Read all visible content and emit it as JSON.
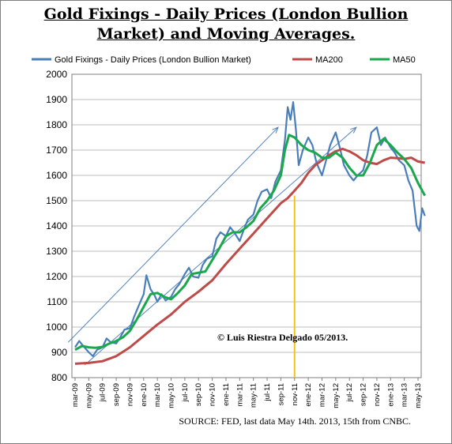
{
  "title_line1": "Gold Fixings - Daily Prices (London Bullion",
  "title_line2": "Market) and Moving Averages.",
  "source": "SOURCE: FED, last data May 14th. 2013, 15th from CNBC.",
  "annotation": "© Luis Riestra Delgado 05/2013.",
  "colors": {
    "price": "#4a7ebb",
    "ma200": "#be4b48",
    "ma50": "#1aa84c",
    "trend": "#4f81bd",
    "marker": "#f2c314",
    "grid": "#bfbfbf"
  },
  "chart_data": {
    "type": "line",
    "title": "Gold Fixings - Daily Prices (London Bullion Market) and Moving Averages.",
    "xlabel": "",
    "ylabel": "",
    "ylim": [
      800,
      2000
    ],
    "yticks": [
      800,
      900,
      1000,
      1100,
      1200,
      1300,
      1400,
      1500,
      1600,
      1700,
      1800,
      1900,
      2000
    ],
    "grid": true,
    "legend_position": "top",
    "x_labels": [
      "mar-09",
      "may-09",
      "jul-09",
      "sep-09",
      "nov-09",
      "ene-10",
      "mar-10",
      "may-10",
      "jul-10",
      "sep-10",
      "nov-10",
      "ene-11",
      "mar-11",
      "may-11",
      "jul-11",
      "sep-11",
      "nov-11",
      "ene-12",
      "mar-12",
      "may-12",
      "jul-12",
      "sep-12",
      "nov-12",
      "ene-13",
      "mar-13",
      "may-13"
    ],
    "series": [
      {
        "name": "Gold Fixings - Daily Prices (London Bullion Market)",
        "values": [
          [
            0,
            920
          ],
          [
            0.3,
            945
          ],
          [
            0.6,
            925
          ],
          [
            1,
            900
          ],
          [
            1.3,
            885
          ],
          [
            1.6,
            910
          ],
          [
            2,
            920
          ],
          [
            2.3,
            955
          ],
          [
            2.6,
            940
          ],
          [
            3,
            935
          ],
          [
            3.3,
            960
          ],
          [
            3.6,
            990
          ],
          [
            4,
            995
          ],
          [
            4.3,
            1040
          ],
          [
            4.6,
            1080
          ],
          [
            5,
            1130
          ],
          [
            5.2,
            1205
          ],
          [
            5.5,
            1150
          ],
          [
            5.8,
            1125
          ],
          [
            6,
            1100
          ],
          [
            6.3,
            1130
          ],
          [
            6.6,
            1105
          ],
          [
            7,
            1120
          ],
          [
            7.3,
            1150
          ],
          [
            7.6,
            1170
          ],
          [
            8,
            1210
          ],
          [
            8.3,
            1235
          ],
          [
            8.6,
            1200
          ],
          [
            9,
            1195
          ],
          [
            9.3,
            1245
          ],
          [
            9.6,
            1270
          ],
          [
            10,
            1280
          ],
          [
            10.3,
            1350
          ],
          [
            10.6,
            1375
          ],
          [
            11,
            1360
          ],
          [
            11.3,
            1395
          ],
          [
            11.6,
            1375
          ],
          [
            12,
            1340
          ],
          [
            12.3,
            1385
          ],
          [
            12.6,
            1425
          ],
          [
            13,
            1445
          ],
          [
            13.3,
            1500
          ],
          [
            13.6,
            1535
          ],
          [
            14,
            1545
          ],
          [
            14.3,
            1510
          ],
          [
            14.6,
            1575
          ],
          [
            15,
            1620
          ],
          [
            15.3,
            1740
          ],
          [
            15.5,
            1870
          ],
          [
            15.7,
            1820
          ],
          [
            15.9,
            1890
          ],
          [
            16.1,
            1780
          ],
          [
            16.3,
            1640
          ],
          [
            16.6,
            1700
          ],
          [
            17,
            1750
          ],
          [
            17.3,
            1720
          ],
          [
            17.6,
            1650
          ],
          [
            18,
            1600
          ],
          [
            18.3,
            1660
          ],
          [
            18.6,
            1720
          ],
          [
            19,
            1770
          ],
          [
            19.3,
            1710
          ],
          [
            19.6,
            1640
          ],
          [
            20,
            1600
          ],
          [
            20.3,
            1580
          ],
          [
            20.6,
            1600
          ],
          [
            21,
            1620
          ],
          [
            21.3,
            1680
          ],
          [
            21.6,
            1770
          ],
          [
            22,
            1790
          ],
          [
            22.3,
            1720
          ],
          [
            22.6,
            1750
          ],
          [
            23,
            1710
          ],
          [
            23.3,
            1690
          ],
          [
            23.6,
            1660
          ],
          [
            24,
            1640
          ],
          [
            24.3,
            1580
          ],
          [
            24.6,
            1540
          ],
          [
            24.9,
            1400
          ],
          [
            25.1,
            1380
          ],
          [
            25.3,
            1470
          ],
          [
            25.5,
            1440
          ]
        ]
      },
      {
        "name": "MA200",
        "values": [
          [
            0,
            855
          ],
          [
            1,
            858
          ],
          [
            2,
            865
          ],
          [
            3,
            885
          ],
          [
            4,
            920
          ],
          [
            5,
            965
          ],
          [
            6,
            1010
          ],
          [
            7,
            1050
          ],
          [
            8,
            1100
          ],
          [
            9,
            1140
          ],
          [
            10,
            1185
          ],
          [
            11,
            1250
          ],
          [
            12,
            1310
          ],
          [
            13,
            1370
          ],
          [
            14,
            1430
          ],
          [
            15,
            1490
          ],
          [
            15.5,
            1510
          ],
          [
            16,
            1540
          ],
          [
            16.5,
            1570
          ],
          [
            17,
            1610
          ],
          [
            17.5,
            1640
          ],
          [
            18,
            1660
          ],
          [
            18.5,
            1680
          ],
          [
            19,
            1695
          ],
          [
            19.5,
            1705
          ],
          [
            20,
            1695
          ],
          [
            20.5,
            1680
          ],
          [
            21,
            1660
          ],
          [
            21.5,
            1650
          ],
          [
            22,
            1645
          ],
          [
            22.5,
            1660
          ],
          [
            23,
            1670
          ],
          [
            23.5,
            1668
          ],
          [
            24,
            1665
          ],
          [
            24.5,
            1670
          ],
          [
            25,
            1655
          ],
          [
            25.5,
            1650
          ]
        ]
      },
      {
        "name": "MA50",
        "values": [
          [
            0,
            910
          ],
          [
            0.5,
            925
          ],
          [
            1,
            920
          ],
          [
            1.5,
            918
          ],
          [
            2,
            922
          ],
          [
            2.5,
            935
          ],
          [
            3,
            945
          ],
          [
            3.5,
            960
          ],
          [
            4,
            985
          ],
          [
            4.5,
            1030
          ],
          [
            5,
            1080
          ],
          [
            5.5,
            1130
          ],
          [
            6,
            1135
          ],
          [
            6.5,
            1120
          ],
          [
            7,
            1110
          ],
          [
            7.5,
            1135
          ],
          [
            8,
            1165
          ],
          [
            8.5,
            1210
          ],
          [
            9,
            1215
          ],
          [
            9.5,
            1220
          ],
          [
            10,
            1265
          ],
          [
            10.5,
            1310
          ],
          [
            11,
            1360
          ],
          [
            11.5,
            1375
          ],
          [
            12,
            1375
          ],
          [
            12.5,
            1395
          ],
          [
            13,
            1420
          ],
          [
            13.5,
            1470
          ],
          [
            14,
            1500
          ],
          [
            14.5,
            1540
          ],
          [
            15,
            1600
          ],
          [
            15.3,
            1700
          ],
          [
            15.6,
            1760
          ],
          [
            16,
            1750
          ],
          [
            16.5,
            1720
          ],
          [
            17,
            1700
          ],
          [
            17.5,
            1690
          ],
          [
            18,
            1670
          ],
          [
            18.5,
            1670
          ],
          [
            19,
            1690
          ],
          [
            19.5,
            1670
          ],
          [
            20,
            1630
          ],
          [
            20.5,
            1600
          ],
          [
            21,
            1600
          ],
          [
            21.5,
            1650
          ],
          [
            22,
            1720
          ],
          [
            22.5,
            1745
          ],
          [
            23,
            1720
          ],
          [
            23.5,
            1690
          ],
          [
            24,
            1665
          ],
          [
            24.5,
            1630
          ],
          [
            25,
            1570
          ],
          [
            25.5,
            1520
          ]
        ]
      }
    ],
    "trend_lines": [
      {
        "from": [
          0.7,
          850
        ],
        "to": [
          20.5,
          1790
        ]
      },
      {
        "from": [
          -0.5,
          940
        ],
        "to": [
          14.8,
          1790
        ]
      }
    ],
    "marker_x": 16.0
  }
}
